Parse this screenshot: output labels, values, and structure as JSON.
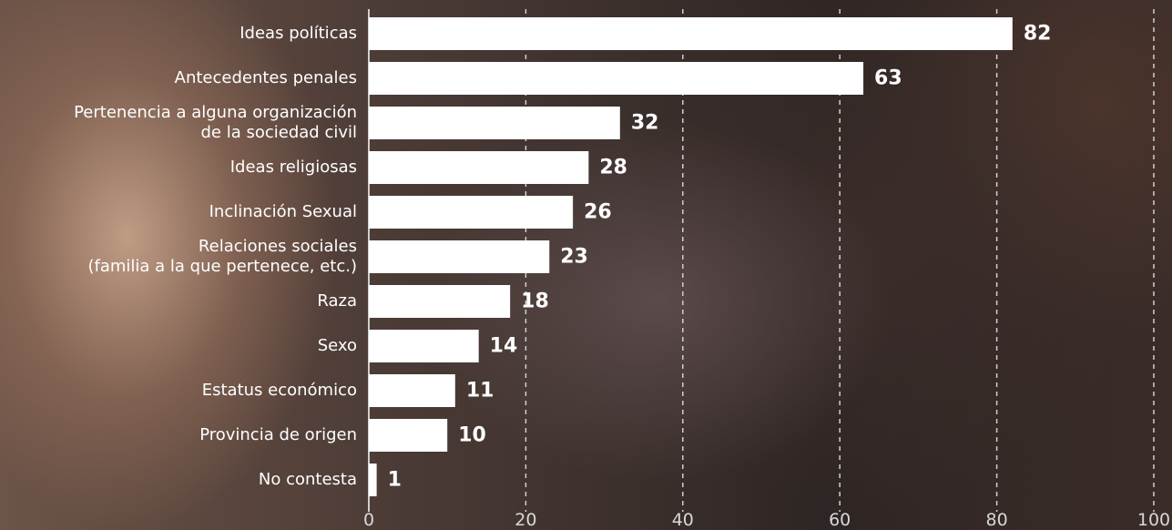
{
  "chart_data": {
    "type": "bar",
    "orientation": "horizontal",
    "categories": [
      "Ideas políticas",
      "Antecedentes penales",
      "Pertenencia a alguna organización\nde la sociedad civil",
      "Ideas religiosas",
      "Inclinación Sexual",
      "Relaciones sociales\n(familia a la que pertenece, etc.)",
      "Raza",
      "Sexo",
      "Estatus económico",
      "Provincia de origen",
      "No contesta"
    ],
    "values": [
      82,
      63,
      32,
      28,
      26,
      23,
      18,
      14,
      11,
      10,
      1
    ],
    "color": "#ffffff",
    "xlim": [
      0,
      100
    ],
    "xticks": [
      0,
      20,
      40,
      60,
      80,
      100
    ],
    "grid": true
  }
}
